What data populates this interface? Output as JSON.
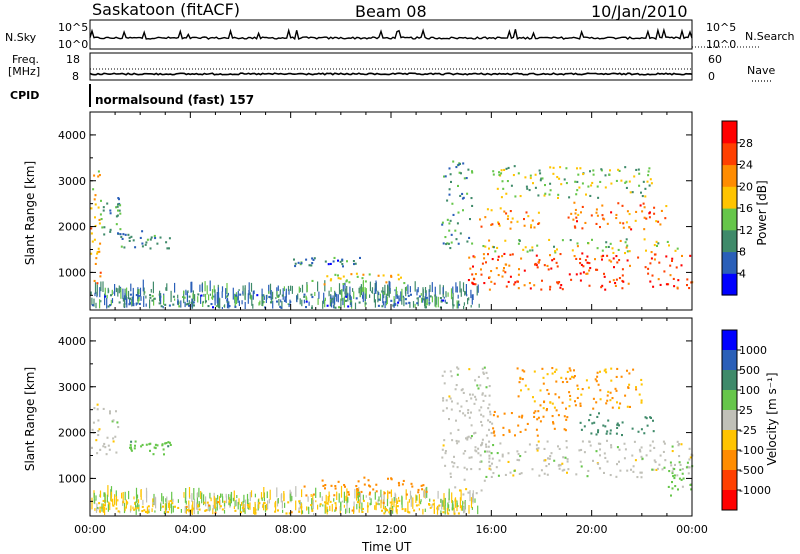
{
  "header": {
    "station": "Saskatoon (fitACF)",
    "beam": "Beam 08",
    "date": "10/Jan/2010"
  },
  "nsky_panel": {
    "left_label": "N.Sky",
    "left_ticks": [
      "10^5",
      "10^0"
    ],
    "right_ticks": [
      "10^5",
      "10^0"
    ],
    "right_label": "N.Search"
  },
  "freq_panel": {
    "left_label_1": "Freq.",
    "left_label_2": "[MHz]",
    "left_ticks": [
      "18",
      "8"
    ],
    "right_ticks": [
      "60",
      "0"
    ],
    "right_label": "Nave"
  },
  "cpid_panel": {
    "label": "CPID",
    "program": "normalsound (fast) 157"
  },
  "power_panel": {
    "ylabel": "Slant Range [km]",
    "yticks": [
      "4000",
      "3000",
      "2000",
      "1000"
    ],
    "colorbar_label": "Power [dB]",
    "colorbar_ticks": [
      "28",
      "24",
      "20",
      "16",
      "12",
      "8",
      "4"
    ],
    "colors": [
      "#0000ff",
      "#2a5fb8",
      "#3f8a6a",
      "#66c64a",
      "#ffc400",
      "#ff8c00",
      "#ff4000",
      "#ff0000"
    ]
  },
  "velocity_panel": {
    "ylabel": "Slant Range [km]",
    "yticks": [
      "4000",
      "3000",
      "2000",
      "1000"
    ],
    "colorbar_label": "Velocity [m s⁻¹]",
    "colorbar_ticks": [
      "1000",
      "500",
      "100",
      "25",
      "-25",
      "-100",
      "-500",
      "-1000"
    ],
    "colors": [
      "#0000ff",
      "#2a5fb8",
      "#3f8a6a",
      "#66c64a",
      "#c0c0b8",
      "#ffc400",
      "#ff8c00",
      "#ff4000",
      "#ff0000"
    ]
  },
  "xaxis": {
    "label": "Time UT",
    "ticks": [
      "00:00",
      "04:00",
      "08:00",
      "12:00",
      "16:00",
      "20:00",
      "00:00"
    ]
  },
  "chart_data": {
    "type": "heatmap",
    "x_range_hours": [
      0,
      24
    ],
    "y_range_km": [
      180,
      4500
    ],
    "power_scale_db": [
      0,
      32
    ],
    "velocity_scale_ms": [
      -1200,
      1200
    ],
    "power_regions": [
      {
        "t": [
          0.0,
          0.4
        ],
        "r": [
          700,
          3200
        ],
        "v": 20
      },
      {
        "t": [
          0.3,
          1.2
        ],
        "r": [
          1800,
          2600
        ],
        "v": 10
      },
      {
        "t": [
          1.2,
          3.2
        ],
        "r": [
          1500,
          1900
        ],
        "v": 9
      },
      {
        "t": [
          0.0,
          14.8
        ],
        "r": [
          200,
          500
        ],
        "v": 8
      },
      {
        "t": [
          8.5,
          12.5
        ],
        "r": [
          700,
          950
        ],
        "v": 18
      },
      {
        "t": [
          8.0,
          11.0
        ],
        "r": [
          1100,
          1300
        ],
        "v": 8
      },
      {
        "t": [
          14.0,
          15.2
        ],
        "r": [
          1500,
          3400
        ],
        "v": 10
      },
      {
        "t": [
          15.0,
          24.0
        ],
        "r": [
          600,
          1400
        ],
        "v": 26
      },
      {
        "t": [
          15.5,
          23.5
        ],
        "r": [
          1400,
          1700
        ],
        "v": 16
      },
      {
        "t": [
          15.5,
          18.0
        ],
        "r": [
          1900,
          2400
        ],
        "v": 22
      },
      {
        "t": [
          19.0,
          23.0
        ],
        "r": [
          1900,
          2500
        ],
        "v": 24
      },
      {
        "t": [
          16.0,
          22.5
        ],
        "r": [
          2600,
          3300
        ],
        "v": 14
      }
    ],
    "velocity_regions": [
      {
        "t": [
          0.0,
          1.2
        ],
        "r": [
          1500,
          2600
        ],
        "v": 0
      },
      {
        "t": [
          1.5,
          3.2
        ],
        "r": [
          1500,
          1800
        ],
        "v": 70
      },
      {
        "t": [
          0.0,
          15.0
        ],
        "r": [
          200,
          500
        ],
        "v": -70
      },
      {
        "t": [
          8.5,
          13.5
        ],
        "r": [
          600,
          1000
        ],
        "v": -300
      },
      {
        "t": [
          14.0,
          16.0
        ],
        "r": [
          600,
          3400
        ],
        "v": 0
      },
      {
        "t": [
          15.5,
          24.0
        ],
        "r": [
          1000,
          1800
        ],
        "v": 0
      },
      {
        "t": [
          16.0,
          19.0
        ],
        "r": [
          1900,
          2500
        ],
        "v": -300
      },
      {
        "t": [
          19.5,
          22.5
        ],
        "r": [
          1900,
          2400
        ],
        "v": 200
      },
      {
        "t": [
          17.0,
          22.0
        ],
        "r": [
          2500,
          3400
        ],
        "v": -100
      },
      {
        "t": [
          23.0,
          24.0
        ],
        "r": [
          600,
          1400
        ],
        "v": 50
      }
    ]
  }
}
